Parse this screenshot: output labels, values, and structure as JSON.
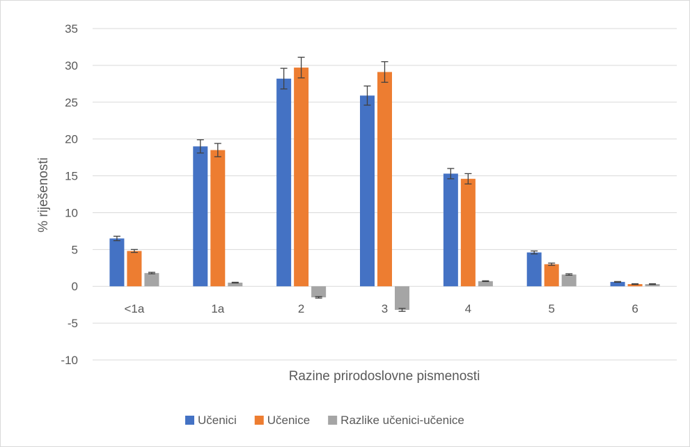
{
  "chart_data": {
    "type": "bar",
    "xlabel": "Razine prirodoslovne pismenosti",
    "ylabel": "% riješenosti",
    "ylim": [
      -10,
      35
    ],
    "yticks": [
      -10,
      -5,
      0,
      5,
      10,
      15,
      20,
      25,
      30,
      35
    ],
    "categories": [
      "<1a",
      "1a",
      "2",
      "3",
      "4",
      "5",
      "6"
    ],
    "grid": true,
    "legend": "bottom",
    "series": [
      {
        "name": "Učenici",
        "color": "#4472C4",
        "values": [
          6.5,
          19.0,
          28.2,
          25.9,
          15.3,
          4.6,
          0.6
        ],
        "errors": [
          0.3,
          0.9,
          1.4,
          1.3,
          0.7,
          0.2,
          0.05
        ]
      },
      {
        "name": "Učenice",
        "color": "#ED7D31",
        "values": [
          4.8,
          18.5,
          29.7,
          29.1,
          14.6,
          3.0,
          0.3
        ],
        "errors": [
          0.2,
          0.9,
          1.4,
          1.4,
          0.7,
          0.15,
          0.05
        ]
      },
      {
        "name": "Razlike učenici-učenice",
        "color": "#A5A5A5",
        "values": [
          1.8,
          0.5,
          -1.5,
          -3.2,
          0.7,
          1.6,
          0.3
        ],
        "errors": [
          0.1,
          0.05,
          0.1,
          0.2,
          0.05,
          0.1,
          0.05
        ]
      }
    ]
  }
}
